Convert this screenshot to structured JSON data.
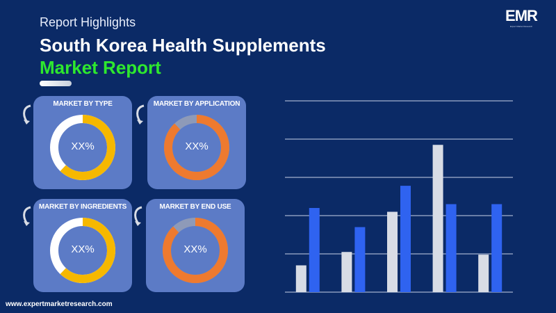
{
  "header": {
    "highlights": "Report Highlights",
    "title_line1": "South Korea Health Supplements",
    "title_line2": "Market Report"
  },
  "logo": {
    "mark": "EMR",
    "tagline": "Expert Market Research"
  },
  "footer": {
    "url": "www.expertmarketresearch.com"
  },
  "cards": [
    {
      "title": "MARKET BY TYPE",
      "value": "XX%",
      "ring_color": "#f6b800",
      "track_color": "#ffffff",
      "fill_fraction": 0.62
    },
    {
      "title": "MARKET BY APPLICATION",
      "value": "XX%",
      "ring_color": "#ee7a2f",
      "track_color": "#8e9ab8",
      "fill_fraction": 0.88
    },
    {
      "title": "MARKET BY INGREDIENTS",
      "value": "XX%",
      "ring_color": "#f6b800",
      "track_color": "#ffffff",
      "fill_fraction": 0.62
    },
    {
      "title": "MARKET BY END USE",
      "value": "XX%",
      "ring_color": "#ee7a2f",
      "track_color": "#8e9ab8",
      "fill_fraction": 0.88
    }
  ],
  "colors": {
    "background": "#0b2a66",
    "card": "#5c7bc6",
    "title_green": "#2ee82e",
    "series_gray": "#d8dce5",
    "series_blue": "#2f63f0",
    "gridline": "#c9d3e8"
  },
  "chart_data": {
    "type": "bar",
    "categories": [
      "",
      "",
      "",
      "",
      ""
    ],
    "series": [
      {
        "values": [
          0.7,
          1.05,
          2.1,
          3.85,
          0.98
        ]
      },
      {
        "values": [
          2.2,
          1.7,
          2.78,
          2.3,
          2.3
        ]
      }
    ],
    "ylim": [
      0,
      5
    ],
    "grid": true,
    "legend": "none",
    "xlabel": "",
    "ylabel": ""
  }
}
